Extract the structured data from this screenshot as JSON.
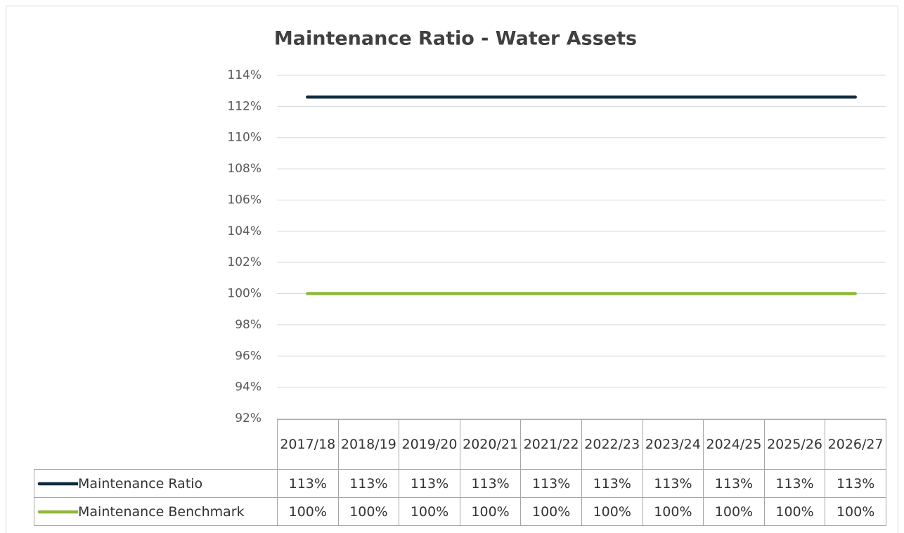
{
  "chart_data": {
    "type": "line",
    "title": "Maintenance Ratio - Water Assets",
    "categories": [
      "2017/18",
      "2018/19",
      "2019/20",
      "2020/21",
      "2021/22",
      "2022/23",
      "2023/24",
      "2024/25",
      "2025/26",
      "2026/27"
    ],
    "series": [
      {
        "name": "Maintenance Ratio",
        "color": "#0f2a3d",
        "values": [
          112.6,
          112.6,
          112.6,
          112.6,
          112.6,
          112.6,
          112.6,
          112.6,
          112.6,
          112.6
        ],
        "value_labels": [
          "113%",
          "113%",
          "113%",
          "113%",
          "113%",
          "113%",
          "113%",
          "113%",
          "113%",
          "113%"
        ]
      },
      {
        "name": "Maintenance Benchmark",
        "color": "#8db83a",
        "values": [
          100,
          100,
          100,
          100,
          100,
          100,
          100,
          100,
          100,
          100
        ],
        "value_labels": [
          "100%",
          "100%",
          "100%",
          "100%",
          "100%",
          "100%",
          "100%",
          "100%",
          "100%",
          "100%"
        ]
      }
    ],
    "ylim": [
      92,
      114
    ],
    "yticks": [
      {
        "value": 92,
        "label": "92%"
      },
      {
        "value": 94,
        "label": "94%"
      },
      {
        "value": 96,
        "label": "96%"
      },
      {
        "value": 98,
        "label": "98%"
      },
      {
        "value": 100,
        "label": "100%"
      },
      {
        "value": 102,
        "label": "102%"
      },
      {
        "value": 104,
        "label": "104%"
      },
      {
        "value": 106,
        "label": "106%"
      },
      {
        "value": 108,
        "label": "108%"
      },
      {
        "value": 110,
        "label": "110%"
      },
      {
        "value": 112,
        "label": "112%"
      },
      {
        "value": 114,
        "label": "114%"
      }
    ],
    "grid": true
  }
}
